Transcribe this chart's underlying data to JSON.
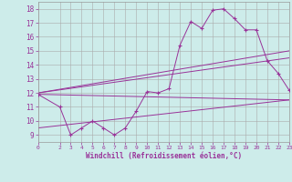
{
  "xlabel": "Windchill (Refroidissement éolien,°C)",
  "xlim": [
    0,
    23
  ],
  "ylim": [
    8.5,
    18.5
  ],
  "xticks": [
    0,
    2,
    3,
    4,
    5,
    6,
    7,
    8,
    9,
    10,
    11,
    12,
    13,
    14,
    15,
    16,
    17,
    18,
    19,
    20,
    21,
    22,
    23
  ],
  "yticks": [
    9,
    10,
    11,
    12,
    13,
    14,
    15,
    16,
    17,
    18
  ],
  "bg_color": "#cdecea",
  "line_color": "#993399",
  "lines": [
    {
      "x": [
        0,
        2,
        3,
        4,
        5,
        6,
        7,
        8,
        9,
        10,
        11,
        12,
        13,
        14,
        15,
        16,
        17,
        18,
        19,
        20,
        21,
        22,
        23
      ],
      "y": [
        11.9,
        11.0,
        9.0,
        9.5,
        10.0,
        9.5,
        9.0,
        9.5,
        10.7,
        12.1,
        12.0,
        12.3,
        15.4,
        17.1,
        16.6,
        17.9,
        18.0,
        17.3,
        16.5,
        16.5,
        14.3,
        13.4,
        12.2
      ],
      "marker": true
    },
    {
      "x": [
        0,
        23
      ],
      "y": [
        12.0,
        15.0
      ],
      "marker": false
    },
    {
      "x": [
        0,
        23
      ],
      "y": [
        12.0,
        14.5
      ],
      "marker": false
    },
    {
      "x": [
        0,
        23
      ],
      "y": [
        11.9,
        11.5
      ],
      "marker": false
    },
    {
      "x": [
        0,
        23
      ],
      "y": [
        9.5,
        11.5
      ],
      "marker": false
    }
  ]
}
